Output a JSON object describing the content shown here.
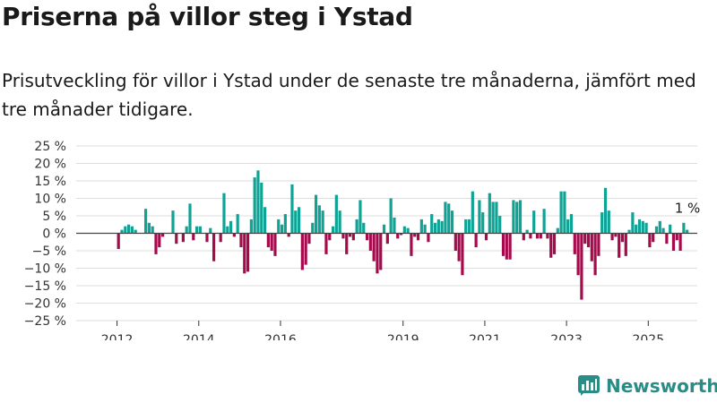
{
  "title": "Priserna på villor steg i Ystad",
  "subtitle": "Prisutveckling för villor i Ystad under de senaste tre månaderna, jämfört med tre månader tidigare.",
  "brand": {
    "name": "Newsworthy"
  },
  "colors": {
    "positive": "#0fa396",
    "negative": "#a50b4c",
    "grid": "#dddddd",
    "zero_line": "#444444",
    "brand": "#2a8c86"
  },
  "chart_data": {
    "type": "bar",
    "title": "Priserna på villor steg i Ystad",
    "xlabel": "",
    "ylabel": "",
    "ylim": [
      -25,
      25
    ],
    "y_ticks": [
      25,
      20,
      15,
      10,
      5,
      0,
      -5,
      -10,
      -15,
      -20,
      -25
    ],
    "y_tick_labels": [
      "25 %",
      "20 %",
      "15 %",
      "10 %",
      "5 %",
      "0 %",
      "−5 %",
      "−10 %",
      "−15 %",
      "−20 %",
      "−25 %"
    ],
    "x_range": [
      2011.0,
      2026.2
    ],
    "x_ticks": [
      2012,
      2014,
      2016,
      2019,
      2021,
      2023,
      2025
    ],
    "x_tick_labels": [
      "2012",
      "2014",
      "2016",
      "2019",
      "2021",
      "2023",
      "2025"
    ],
    "grid": true,
    "last_value_label": "1 %",
    "start": "2012-01",
    "frequency": "monthly",
    "values": [
      -4.5,
      1,
      2,
      2.5,
      2,
      1,
      0,
      0,
      7,
      3,
      2,
      -6,
      -4,
      -1,
      0,
      0,
      6.5,
      -3,
      0,
      -2.5,
      2,
      8.5,
      -2,
      2,
      2,
      0,
      -2.5,
      1.5,
      -8,
      0,
      -2.5,
      11.5,
      2,
      3.5,
      -1,
      5.5,
      -4,
      -11.5,
      -11,
      4,
      16,
      18,
      14.5,
      7.5,
      -4,
      -5,
      -6.5,
      4,
      2.5,
      5.5,
      -1,
      14,
      6.5,
      7.5,
      -10.5,
      -9,
      -3,
      3,
      11,
      8,
      6.5,
      -6,
      -2,
      2,
      11,
      6.5,
      -1.5,
      -6,
      -1,
      -2,
      4,
      9.5,
      3,
      -2,
      -5,
      -8,
      -11.5,
      -10.5,
      2.5,
      -3,
      10,
      4.5,
      -1.5,
      -0.5,
      2,
      1.5,
      -6.5,
      -1,
      -2,
      4,
      2.5,
      -2.5,
      5.5,
      3,
      4,
      3.5,
      9,
      8.5,
      6.5,
      -5,
      -8,
      -12,
      4,
      4,
      12,
      -4,
      9.5,
      6,
      -2,
      11.5,
      9,
      9,
      5,
      -6.5,
      -7.5,
      -7.5,
      9.5,
      9,
      9.5,
      -2,
      1,
      -1.5,
      6.5,
      -1.5,
      -1.5,
      7,
      -1.5,
      -7,
      -6,
      1.5,
      12,
      12,
      4,
      5.5,
      -6,
      -12,
      -19,
      -3,
      -4,
      -8,
      -12,
      -6.5,
      6,
      13,
      6.5,
      -2,
      -1,
      -7,
      -2.5,
      -6.5,
      1,
      6,
      2.5,
      4,
      3.5,
      3,
      -4,
      -2.5,
      2,
      3.5,
      1.5,
      -3,
      2.5,
      -5,
      -2,
      -5,
      3,
      1
    ]
  }
}
